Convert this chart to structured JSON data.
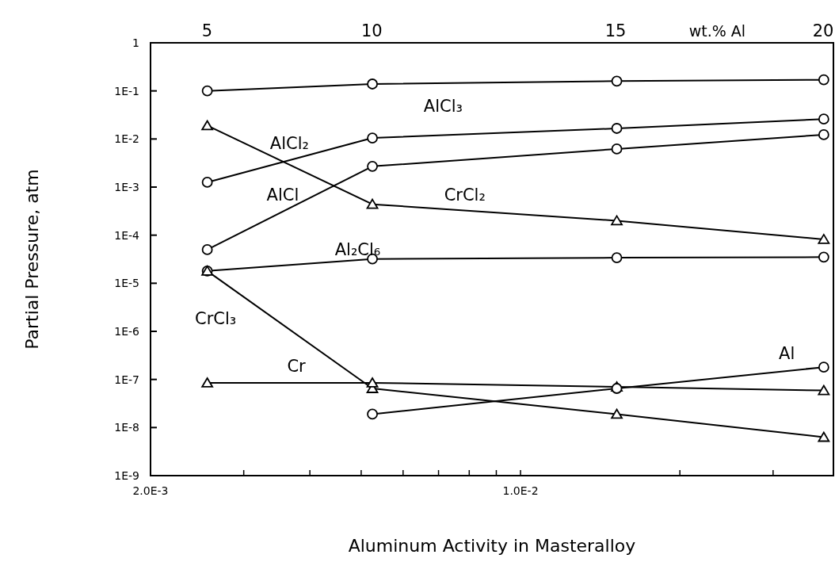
{
  "chart_data": {
    "type": "line",
    "xlabel": "Aluminum Activity in Masteralloy",
    "ylabel": "Partial Pressure, atm",
    "log": "xy",
    "x": [
      0.00256,
      0.00525,
      0.0152,
      0.0374
    ],
    "xlim": [
      0.002,
      0.039
    ],
    "xticks": [
      {
        "value": 0.002,
        "label": "2.0E-3"
      },
      {
        "value": 0.003,
        "label": null
      },
      {
        "value": 0.004,
        "label": null
      },
      {
        "value": 0.005,
        "label": null
      },
      {
        "value": 0.006,
        "label": null
      },
      {
        "value": 0.007,
        "label": null
      },
      {
        "value": 0.008,
        "label": null
      },
      {
        "value": 0.009,
        "label": null
      },
      {
        "value": 0.01,
        "label": "1.0E-2"
      },
      {
        "value": 0.02,
        "label": null
      },
      {
        "value": 0.03,
        "label": null
      }
    ],
    "annotations": [
      "5",
      "10",
      "15",
      "20",
      "wt.% Al"
    ],
    "ylim": [
      1e-09,
      1
    ],
    "yticks": [
      {
        "value": 1,
        "label": "1"
      },
      {
        "value": 0.1,
        "label": "1E-1"
      },
      {
        "value": 0.01,
        "label": "1E-2"
      },
      {
        "value": 0.001,
        "label": "1E-3"
      },
      {
        "value": 0.0001,
        "label": "1E-4"
      },
      {
        "value": 1e-05,
        "label": "1E-5"
      },
      {
        "value": 1e-06,
        "label": "1E-6"
      },
      {
        "value": 1e-07,
        "label": "1E-7"
      },
      {
        "value": 1e-08,
        "label": "1E-8"
      },
      {
        "value": 1e-09,
        "label": "1E-9"
      }
    ],
    "grid": false,
    "line_style": "solid",
    "series": [
      {
        "name": "AlCl₃",
        "color": "#000000",
        "marker": "circle",
        "values": [
          0.1,
          0.139,
          0.16,
          0.17
        ]
      },
      {
        "name": "AlCl₂",
        "color": "#000000",
        "marker": "circle",
        "values": [
          0.00126,
          0.0105,
          0.0166,
          0.026
        ]
      },
      {
        "name": "AlCl",
        "color": "#000000",
        "marker": "circle",
        "values": [
          5e-05,
          0.0027,
          0.0062,
          0.0123
        ]
      },
      {
        "name": "CrCl₂",
        "color": "#000000",
        "marker": "triangle",
        "values": [
          0.019,
          0.00044,
          0.0002,
          8.2e-05
        ]
      },
      {
        "name": "Al₂Cl₆",
        "color": "#000000",
        "marker": "circle",
        "values": [
          1.8e-05,
          3.2e-05,
          3.4e-05,
          3.5e-05
        ]
      },
      {
        "name": "CrCl₃",
        "color": "#000000",
        "marker": "triangle",
        "values": [
          1.8e-05,
          6.5e-08,
          1.9e-08,
          6.3e-09
        ]
      },
      {
        "name": "Cr",
        "color": "#000000",
        "marker": "triangle",
        "values": [
          8.5e-08,
          8.5e-08,
          7e-08,
          5.9e-08
        ]
      },
      {
        "name": "Al",
        "color": "#000000",
        "marker": "circle",
        "values": [
          null,
          1.9e-08,
          6.5e-08,
          1.8e-07
        ]
      }
    ]
  }
}
